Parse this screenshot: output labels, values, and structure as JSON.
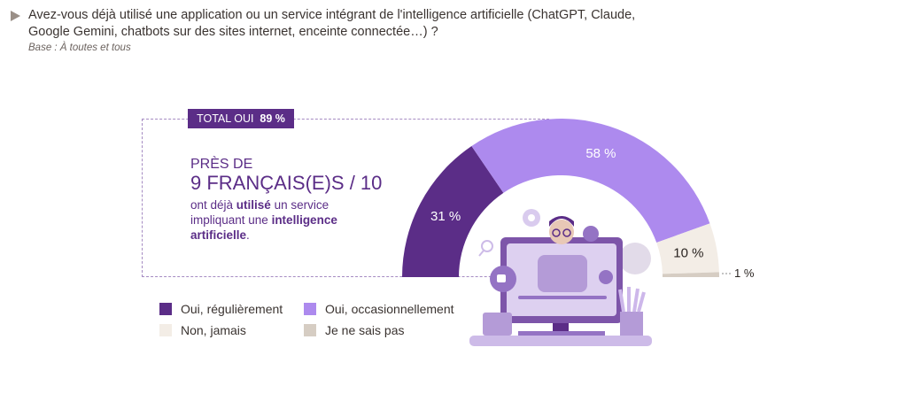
{
  "header": {
    "question": "Avez-vous déjà utilisé une application ou un service intégrant de l'intelligence artificielle (ChatGPT, Claude, Google Gemini, chatbots sur des sites internet, enceinte connectée…) ?",
    "base": "Base : À toutes et tous"
  },
  "callout": {
    "total_label": "TOTAL OUI",
    "total_value": "89 %",
    "line1": "PRÈS DE",
    "line2": "9 FRANÇAIS(E)S / 10",
    "desc_pre": "ont déjà ",
    "desc_bold1": "utilisé",
    "desc_mid": " un service impliquant une ",
    "desc_bold2": "intelligence artificielle",
    "desc_end": "."
  },
  "chart_data": {
    "type": "pie",
    "variant": "semi-donut",
    "categories": [
      "Oui, régulièrement",
      "Oui, occasionnellement",
      "Non, jamais",
      "Je ne sais pas"
    ],
    "values": [
      31,
      58,
      10,
      1
    ],
    "labels": [
      "31 %",
      "58 %",
      "10 %",
      "1 %"
    ],
    "colors": [
      "#5b2d87",
      "#ad8aee",
      "#f3ede6",
      "#d6cdc3"
    ],
    "label_colors": [
      "#ffffff",
      "#ffffff",
      "#2b2522",
      "#2b2522"
    ],
    "legend_placement": "bottom-left"
  },
  "illustration": {
    "icon": "person-on-monitor-illustration"
  }
}
